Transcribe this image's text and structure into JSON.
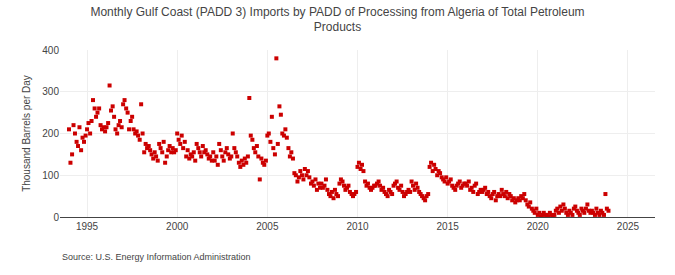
{
  "chart_data": {
    "type": "scatter",
    "title": "Monthly Gulf Coast (PADD 3) Imports by PADD of Processing from Algeria of Total Petroleum\nProducts",
    "ylabel": "Thousand Barrels per Day",
    "source": "Source: U.S. Energy Information Administration",
    "color": "#cc0000",
    "marker": "square",
    "grid": true,
    "xlim": [
      1993.5,
      2026.5
    ],
    "ylim": [
      0,
      400
    ],
    "xticks": [
      1995,
      2000,
      2005,
      2010,
      2015,
      2020,
      2025
    ],
    "yticks": [
      0,
      100,
      200,
      300,
      400
    ],
    "x": [
      1994.0,
      1994.08,
      1994.17,
      1994.25,
      1994.33,
      1994.42,
      1994.5,
      1994.58,
      1994.67,
      1994.75,
      1994.83,
      1994.92,
      1995.0,
      1995.08,
      1995.17,
      1995.25,
      1995.33,
      1995.42,
      1995.5,
      1995.58,
      1995.67,
      1995.75,
      1995.83,
      1995.92,
      1996.0,
      1996.08,
      1996.17,
      1996.25,
      1996.33,
      1996.42,
      1996.5,
      1996.58,
      1996.67,
      1996.75,
      1996.83,
      1996.92,
      1997.0,
      1997.08,
      1997.17,
      1997.25,
      1997.33,
      1997.42,
      1997.5,
      1997.58,
      1997.67,
      1997.75,
      1997.83,
      1997.92,
      1998.0,
      1998.08,
      1998.17,
      1998.25,
      1998.33,
      1998.42,
      1998.5,
      1998.58,
      1998.67,
      1998.75,
      1998.83,
      1998.92,
      1999.0,
      1999.08,
      1999.17,
      1999.25,
      1999.33,
      1999.42,
      1999.5,
      1999.58,
      1999.67,
      1999.75,
      1999.83,
      1999.92,
      2000.0,
      2000.08,
      2000.17,
      2000.25,
      2000.33,
      2000.42,
      2000.5,
      2000.58,
      2000.67,
      2000.75,
      2000.83,
      2000.92,
      2001.0,
      2001.08,
      2001.17,
      2001.25,
      2001.33,
      2001.42,
      2001.5,
      2001.58,
      2001.67,
      2001.75,
      2001.83,
      2001.92,
      2002.0,
      2002.08,
      2002.17,
      2002.25,
      2002.33,
      2002.42,
      2002.5,
      2002.58,
      2002.67,
      2002.75,
      2002.83,
      2002.92,
      2003.0,
      2003.08,
      2003.17,
      2003.25,
      2003.33,
      2003.42,
      2003.5,
      2003.58,
      2003.67,
      2003.75,
      2003.83,
      2003.92,
      2004.0,
      2004.08,
      2004.17,
      2004.25,
      2004.33,
      2004.42,
      2004.5,
      2004.58,
      2004.67,
      2004.75,
      2004.83,
      2004.92,
      2005.0,
      2005.08,
      2005.17,
      2005.25,
      2005.33,
      2005.42,
      2005.5,
      2005.58,
      2005.67,
      2005.75,
      2005.83,
      2005.92,
      2006.0,
      2006.08,
      2006.17,
      2006.25,
      2006.33,
      2006.42,
      2006.5,
      2006.58,
      2006.67,
      2006.75,
      2006.83,
      2006.92,
      2007.0,
      2007.08,
      2007.17,
      2007.25,
      2007.33,
      2007.42,
      2007.5,
      2007.58,
      2007.67,
      2007.75,
      2007.83,
      2007.92,
      2008.0,
      2008.08,
      2008.17,
      2008.25,
      2008.33,
      2008.42,
      2008.5,
      2008.58,
      2008.67,
      2008.75,
      2008.83,
      2008.92,
      2009.0,
      2009.08,
      2009.17,
      2009.25,
      2009.33,
      2009.42,
      2009.5,
      2009.58,
      2009.67,
      2009.75,
      2009.83,
      2009.92,
      2010.0,
      2010.08,
      2010.17,
      2010.25,
      2010.33,
      2010.42,
      2010.5,
      2010.58,
      2010.67,
      2010.75,
      2010.83,
      2010.92,
      2011.0,
      2011.08,
      2011.17,
      2011.25,
      2011.33,
      2011.42,
      2011.5,
      2011.58,
      2011.67,
      2011.75,
      2011.83,
      2011.92,
      2012.0,
      2012.08,
      2012.17,
      2012.25,
      2012.33,
      2012.42,
      2012.5,
      2012.58,
      2012.67,
      2012.75,
      2012.83,
      2012.92,
      2013.0,
      2013.08,
      2013.17,
      2013.25,
      2013.33,
      2013.42,
      2013.5,
      2013.58,
      2013.67,
      2013.75,
      2013.83,
      2013.92,
      2014.0,
      2014.08,
      2014.17,
      2014.25,
      2014.33,
      2014.42,
      2014.5,
      2014.58,
      2014.67,
      2014.75,
      2014.83,
      2014.92,
      2015.0,
      2015.08,
      2015.17,
      2015.25,
      2015.33,
      2015.42,
      2015.5,
      2015.58,
      2015.67,
      2015.75,
      2015.83,
      2015.92,
      2016.0,
      2016.08,
      2016.17,
      2016.25,
      2016.33,
      2016.42,
      2016.5,
      2016.58,
      2016.67,
      2016.75,
      2016.83,
      2016.92,
      2017.0,
      2017.08,
      2017.17,
      2017.25,
      2017.33,
      2017.42,
      2017.5,
      2017.58,
      2017.67,
      2017.75,
      2017.83,
      2017.92,
      2018.0,
      2018.08,
      2018.17,
      2018.25,
      2018.33,
      2018.42,
      2018.5,
      2018.58,
      2018.67,
      2018.75,
      2018.83,
      2018.92,
      2019.0,
      2019.08,
      2019.17,
      2019.25,
      2019.33,
      2019.42,
      2019.5,
      2019.58,
      2019.67,
      2019.75,
      2019.83,
      2019.92,
      2020.0,
      2020.08,
      2020.17,
      2020.25,
      2020.33,
      2020.42,
      2020.5,
      2020.58,
      2020.67,
      2020.75,
      2020.83,
      2020.92,
      2021.0,
      2021.08,
      2021.17,
      2021.25,
      2021.33,
      2021.42,
      2021.5,
      2021.58,
      2021.67,
      2021.75,
      2021.83,
      2021.92,
      2022.0,
      2022.08,
      2022.17,
      2022.25,
      2022.33,
      2022.42,
      2022.5,
      2022.58,
      2022.67,
      2022.75,
      2022.83,
      2022.92,
      2023.0,
      2023.08,
      2023.17,
      2023.25,
      2023.33,
      2023.42,
      2023.5,
      2023.58,
      2023.67,
      2023.75,
      2023.83,
      2023.92
    ],
    "values": [
      210,
      130,
      150,
      220,
      200,
      180,
      170,
      215,
      160,
      190,
      180,
      195,
      210,
      225,
      200,
      230,
      280,
      260,
      240,
      250,
      260,
      220,
      210,
      215,
      205,
      215,
      225,
      315,
      255,
      265,
      240,
      210,
      200,
      220,
      230,
      215,
      270,
      280,
      260,
      250,
      210,
      230,
      240,
      210,
      200,
      205,
      195,
      185,
      270,
      200,
      155,
      175,
      165,
      170,
      160,
      150,
      140,
      155,
      145,
      135,
      175,
      165,
      155,
      180,
      130,
      145,
      160,
      170,
      155,
      165,
      155,
      160,
      200,
      185,
      175,
      195,
      165,
      180,
      145,
      160,
      140,
      150,
      145,
      155,
      135,
      175,
      165,
      155,
      145,
      170,
      155,
      160,
      150,
      140,
      145,
      135,
      155,
      135,
      145,
      125,
      175,
      160,
      145,
      135,
      155,
      165,
      150,
      140,
      145,
      200,
      165,
      155,
      145,
      130,
      120,
      135,
      125,
      140,
      130,
      145,
      285,
      195,
      185,
      165,
      155,
      170,
      145,
      90,
      140,
      130,
      125,
      135,
      195,
      200,
      180,
      240,
      165,
      150,
      380,
      175,
      265,
      245,
      200,
      195,
      210,
      190,
      165,
      145,
      155,
      140,
      105,
      100,
      85,
      95,
      110,
      100,
      90,
      115,
      100,
      110,
      95,
      80,
      85,
      75,
      90,
      65,
      80,
      70,
      80,
      70,
      75,
      90,
      65,
      55,
      50,
      60,
      45,
      65,
      55,
      50,
      80,
      90,
      85,
      75,
      65,
      70,
      75,
      60,
      55,
      50,
      55,
      60,
      120,
      130,
      115,
      125,
      110,
      85,
      75,
      80,
      70,
      65,
      70,
      75,
      75,
      80,
      85,
      75,
      65,
      70,
      60,
      55,
      50,
      65,
      60,
      55,
      75,
      80,
      85,
      70,
      65,
      75,
      60,
      50,
      55,
      60,
      65,
      60,
      85,
      75,
      65,
      80,
      70,
      60,
      55,
      50,
      45,
      40,
      50,
      55,
      120,
      130,
      110,
      125,
      115,
      100,
      110,
      105,
      95,
      90,
      85,
      95,
      80,
      85,
      90,
      75,
      70,
      65,
      75,
      80,
      85,
      70,
      75,
      80,
      80,
      75,
      85,
      65,
      70,
      60,
      75,
      80,
      55,
      60,
      65,
      60,
      65,
      70,
      55,
      60,
      50,
      45,
      55,
      60,
      40,
      50,
      55,
      50,
      65,
      55,
      50,
      60,
      45,
      55,
      50,
      40,
      45,
      35,
      40,
      45,
      40,
      50,
      45,
      55,
      40,
      30,
      25,
      35,
      20,
      15,
      10,
      20,
      5,
      10,
      0,
      5,
      10,
      5,
      5,
      0,
      10,
      5,
      0,
      5,
      15,
      20,
      10,
      25,
      15,
      30,
      20,
      10,
      5,
      15,
      10,
      5,
      20,
      25,
      15,
      10,
      5,
      20,
      15,
      10,
      20,
      30,
      15,
      10,
      15,
      10,
      5,
      20,
      10,
      5,
      15,
      10,
      5,
      55,
      20,
      15
    ]
  }
}
